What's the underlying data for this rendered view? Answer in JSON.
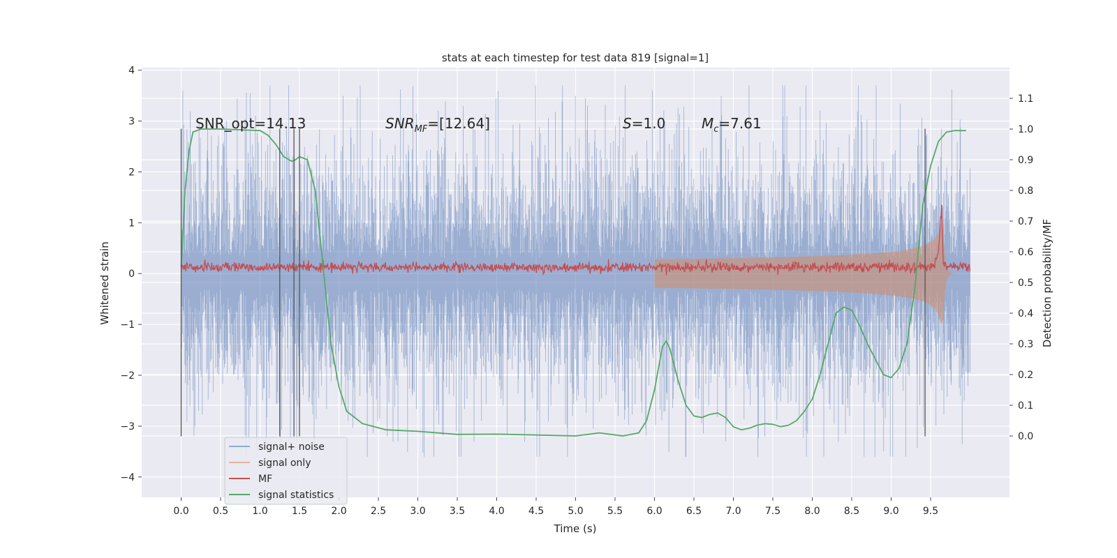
{
  "chart_data": {
    "type": "line",
    "title": "stats at each timestep for test data 819 [signal=1]",
    "xlabel": "Time (s)",
    "ylabel": "Whitened strain",
    "ylabel_right": "Detection probability/MF",
    "xlim": [
      -0.5,
      10.5
    ],
    "ylim": [
      -4.4,
      4.05
    ],
    "ylim_right": [
      -0.2,
      1.2
    ],
    "xticks": [
      "0.0",
      "0.5",
      "1.0",
      "1.5",
      "2.0",
      "2.5",
      "3.0",
      "3.5",
      "4.0",
      "4.5",
      "5.0",
      "5.5",
      "6.0",
      "6.5",
      "7.0",
      "7.5",
      "8.0",
      "8.5",
      "9.0",
      "9.5"
    ],
    "yticks": [
      "−4",
      "−3",
      "−2",
      "−1",
      "0",
      "1",
      "2",
      "3",
      "4"
    ],
    "yticks_right": [
      "0.0",
      "0.1",
      "0.2",
      "0.3",
      "0.4",
      "0.5",
      "0.6",
      "0.7",
      "0.8",
      "0.9",
      "1.0",
      "1.1"
    ],
    "grid": true,
    "legend_position": "lower-left",
    "colors": {
      "signal_noise": "#4c72b0",
      "signal_only": "#dd8452",
      "mf": "#c44e52",
      "signal_statistics": "#55a868",
      "vlines": "#555555",
      "axes_bg": "#eaeaf2"
    },
    "annotations": {
      "snr_opt": "SNR_opt=14.13",
      "snr_mf_base": "SNR",
      "snr_mf_sub": "MF",
      "snr_mf_rest": "=[12.64]",
      "s_base": "S",
      "s_rest": "=1.0",
      "mc_base": "M",
      "mc_sub": "c",
      "mc_rest": "=7.61"
    },
    "series": [
      {
        "name": "signal+ noise",
        "axis": "left",
        "envelope": {
          "x": [
            0.0,
            10.0
          ],
          "typical_amplitude": 1.0,
          "peak_max": 3.7,
          "peak_min": -3.6
        }
      },
      {
        "name": "signal only",
        "axis": "left",
        "chirp": {
          "start": 6.0,
          "merger": 9.65,
          "end": 10.0,
          "amplitude_at_merger": 1.3
        }
      },
      {
        "name": "MF",
        "axis": "right",
        "x": [
          0.0,
          9.55,
          9.6,
          9.64,
          9.66,
          9.7,
          10.0
        ],
        "y": [
          0.55,
          0.55,
          0.6,
          0.75,
          0.57,
          0.55,
          0.55
        ]
      },
      {
        "name": "signal statistics",
        "axis": "right",
        "x": [
          0.0,
          0.05,
          0.1,
          0.15,
          0.25,
          0.5,
          1.0,
          1.1,
          1.2,
          1.3,
          1.4,
          1.45,
          1.5,
          1.6,
          1.7,
          1.8,
          1.85,
          1.9,
          2.0,
          2.1,
          2.3,
          2.6,
          3.0,
          3.5,
          4.0,
          4.5,
          5.0,
          5.3,
          5.6,
          5.8,
          5.9,
          6.0,
          6.1,
          6.15,
          6.2,
          6.3,
          6.4,
          6.5,
          6.6,
          6.7,
          6.8,
          6.9,
          7.0,
          7.1,
          7.2,
          7.3,
          7.4,
          7.5,
          7.6,
          7.7,
          7.8,
          7.9,
          8.0,
          8.1,
          8.2,
          8.3,
          8.4,
          8.5,
          8.6,
          8.7,
          8.8,
          8.9,
          9.0,
          9.1,
          9.2,
          9.3,
          9.4,
          9.5,
          9.6,
          9.7,
          9.8,
          9.9,
          9.95
        ],
        "y": [
          0.55,
          0.8,
          0.93,
          0.99,
          1.0,
          1.0,
          0.995,
          0.98,
          0.95,
          0.91,
          0.895,
          0.9,
          0.91,
          0.9,
          0.8,
          0.55,
          0.42,
          0.3,
          0.16,
          0.08,
          0.04,
          0.02,
          0.015,
          0.005,
          0.006,
          0.003,
          0.0,
          0.01,
          0.0,
          0.01,
          0.05,
          0.15,
          0.29,
          0.31,
          0.28,
          0.18,
          0.1,
          0.065,
          0.06,
          0.07,
          0.075,
          0.06,
          0.03,
          0.02,
          0.025,
          0.035,
          0.04,
          0.038,
          0.03,
          0.035,
          0.05,
          0.08,
          0.12,
          0.2,
          0.3,
          0.4,
          0.42,
          0.41,
          0.36,
          0.3,
          0.25,
          0.2,
          0.19,
          0.22,
          0.3,
          0.48,
          0.75,
          0.88,
          0.96,
          0.99,
          0.995,
          0.995,
          0.995
        ]
      }
    ],
    "vertical_lines": [
      {
        "x": 0.0,
        "ymin": -3.2,
        "ymax": 2.85
      },
      {
        "x": 1.25,
        "ymin": -3.2,
        "ymax": 2.85
      },
      {
        "x": 1.43,
        "ymin": -3.2,
        "ymax": 2.85
      },
      {
        "x": 1.5,
        "ymin": -3.2,
        "ymax": 2.85
      },
      {
        "x": 9.43,
        "ymin": -3.2,
        "ymax": 2.85
      }
    ],
    "legend": [
      "signal+ noise",
      "signal only",
      "MF",
      "signal statistics"
    ]
  }
}
